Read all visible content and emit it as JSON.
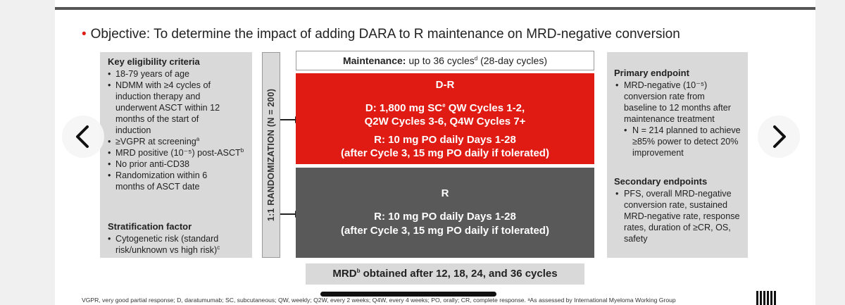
{
  "objective": {
    "bullet": "•",
    "text": "Objective: To determine the impact of adding DARA to R maintenance on MRD-negative conversion"
  },
  "eligibility": {
    "title": "Key eligibility criteria",
    "items": [
      "18-79 years of age",
      "NDMM with ≥4 cycles of induction therapy and underwent ASCT within 12 months of the start of induction",
      "≥VGPR at screening",
      "MRD positive (10⁻⁵) post-ASCT",
      "No prior anti-CD38",
      "Randomization within 6 months of ASCT date"
    ],
    "sup": [
      "",
      "",
      "a",
      "b",
      "",
      ""
    ]
  },
  "stratification": {
    "title": "Stratification factor",
    "items": [
      "Cytogenetic risk (standard risk/unknown vs high risk)"
    ],
    "sup": [
      "c"
    ]
  },
  "randomization_label": "1:1 RANDOMIZATION (N = 200)",
  "maintenance": {
    "label": "Maintenance:",
    "text": " up to 36 cycles",
    "sup": "d",
    "text2": " (28-day cycles)"
  },
  "arm_dr": {
    "name": "D-R",
    "d_line1": "D: 1,800 mg SC",
    "d_sup": "e",
    "d_line1b": " QW Cycles 1-2,",
    "d_line2": "Q2W Cycles 3-6, Q4W Cycles 7+",
    "r_line1": "R: 10 mg PO daily Days 1-28",
    "r_line2": "(after Cycle 3, 15 mg PO daily if tolerated)"
  },
  "arm_r": {
    "name": "R",
    "r_line1": "R: 10 mg PO daily Days 1-28",
    "r_line2": "(after Cycle 3, 15 mg PO daily if tolerated)"
  },
  "primary": {
    "title": "Primary endpoint",
    "item": "MRD-negative (10⁻⁵) conversion rate from baseline to 12 months after maintenance treatment",
    "sub": "N = 214 planned to achieve ≥85% power to detect 20% improvement"
  },
  "secondary": {
    "title": "Secondary endpoints",
    "item": "PFS, overall MRD-negative conversion rate, sustained MRD-negative rate, response rates, duration of ≥CR, OS, safety"
  },
  "mrd_bar": {
    "pre": "MRD",
    "sup": "b",
    "post": " obtained after 12, 18, 24, and 36 cycles"
  },
  "footnote": "VGPR, very good partial response; D, daratumumab; SC, subcutaneous; QW, weekly; Q2W, every 2 weeks; Q4W, every 4 weeks; PO, orally; CR, complete response. ᵃAs assessed by International Myeloma Working Group",
  "nav": {
    "prev_icon": "chevron-left-icon",
    "next_icon": "chevron-right-icon"
  },
  "colors": {
    "accent_red": "#e01b14",
    "arm_r_gray": "#595959",
    "panel_gray": "#d9d9d9"
  }
}
